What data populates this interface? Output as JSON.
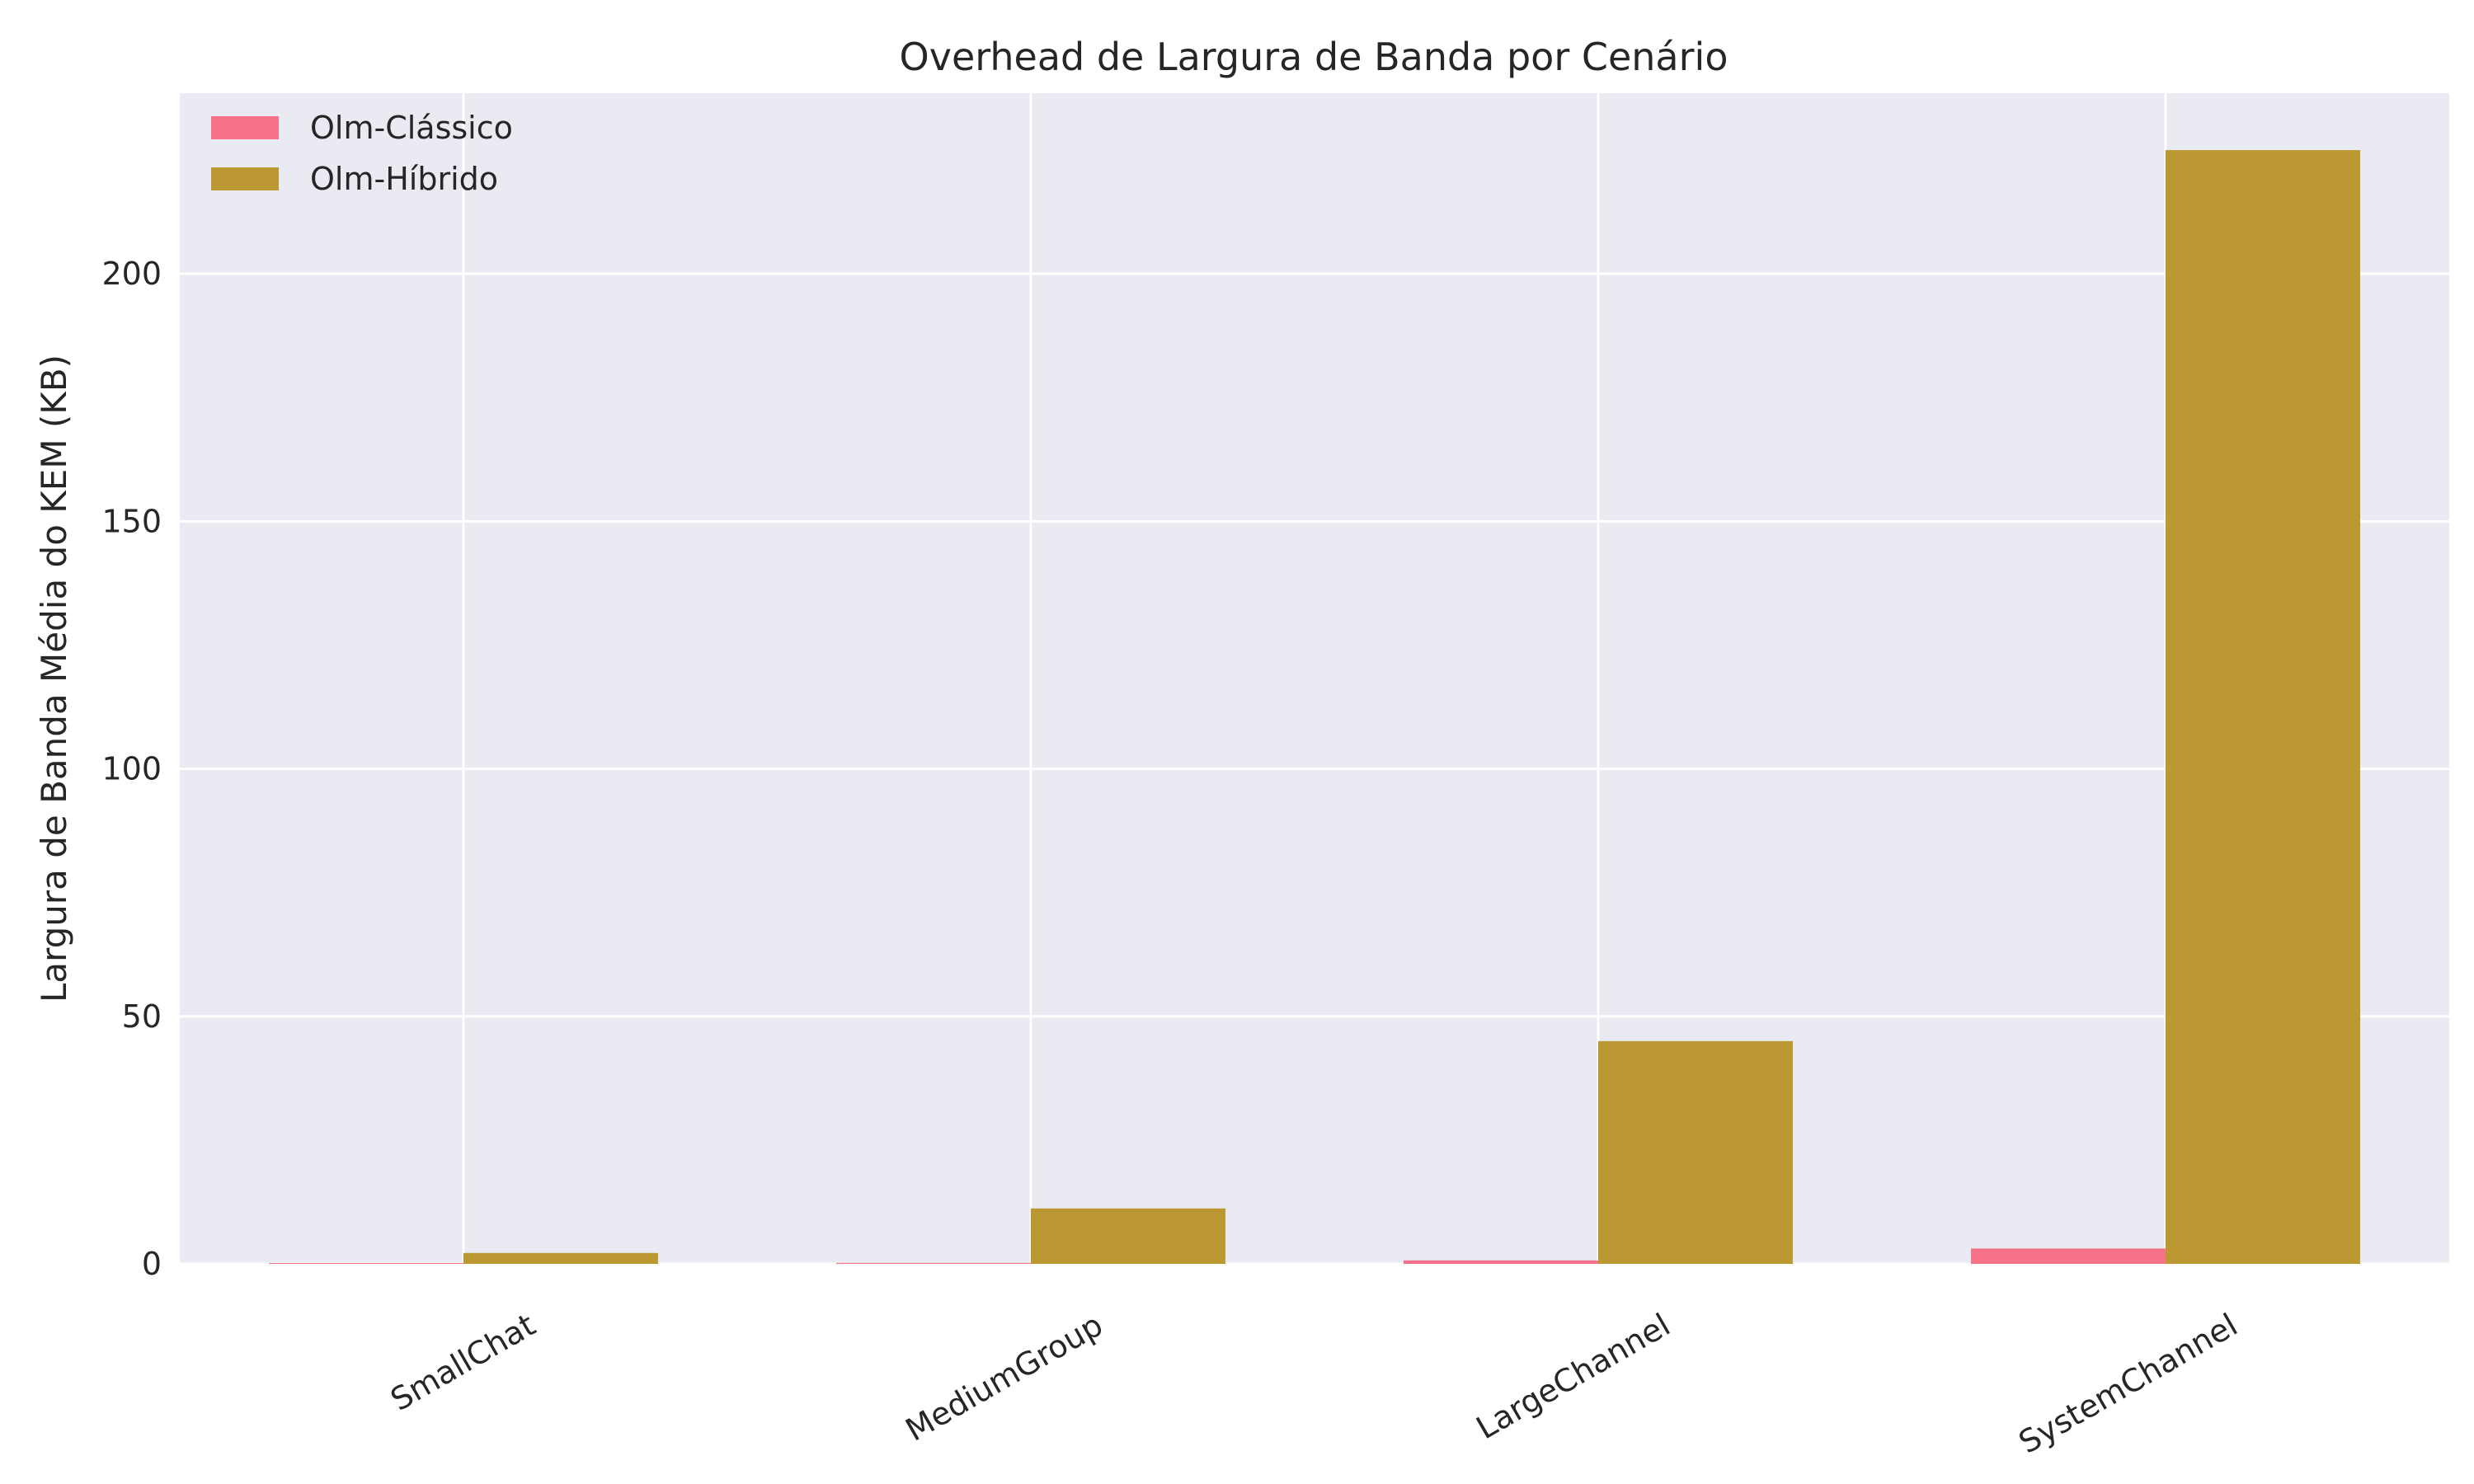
{
  "chart_data": {
    "type": "bar",
    "title": "Overhead de Largura de Banda por Cenário",
    "xlabel": "",
    "ylabel": "Largura de Banda Média do KEM (KB)",
    "categories": [
      "SmallChat",
      "MediumGroup",
      "LargeChannel",
      "SystemChannel"
    ],
    "series": [
      {
        "name": "Olm-Clássico",
        "color": "#f77189",
        "values": [
          0.1,
          0.2,
          0.7,
          3.1
        ]
      },
      {
        "name": "Olm-Híbrido",
        "color": "#bb9832",
        "values": [
          2.2,
          11.2,
          45.0,
          225.0
        ]
      }
    ],
    "yticks": [
      0,
      50,
      100,
      150,
      200
    ],
    "ylim": [
      0,
      236.5
    ],
    "grid": true,
    "legend_position": "top-left",
    "background": "#eaeaf2",
    "grid_color": "#ffffff"
  }
}
